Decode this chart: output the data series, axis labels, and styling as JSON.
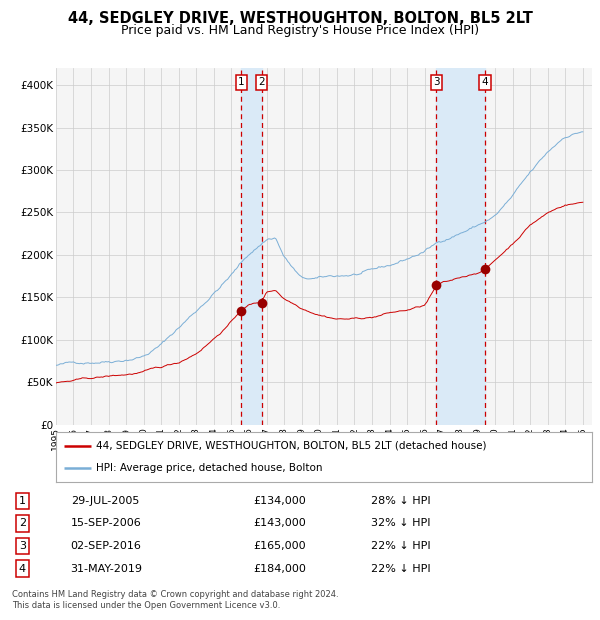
{
  "title": "44, SEDGLEY DRIVE, WESTHOUGHTON, BOLTON, BL5 2LT",
  "subtitle": "Price paid vs. HM Land Registry's House Price Index (HPI)",
  "ylim": [
    0,
    420000
  ],
  "yticks": [
    0,
    50000,
    100000,
    150000,
    200000,
    250000,
    300000,
    350000,
    400000
  ],
  "ytick_labels": [
    "£0",
    "£50K",
    "£100K",
    "£150K",
    "£200K",
    "£250K",
    "£300K",
    "£350K",
    "£400K"
  ],
  "xlim_start": 1995.0,
  "xlim_end": 2025.5,
  "transactions": [
    {
      "num": 1,
      "date_dec": 2005.57,
      "price": 134000,
      "label": "29-JUL-2005",
      "pct": "28%"
    },
    {
      "num": 2,
      "date_dec": 2006.71,
      "price": 143000,
      "label": "15-SEP-2006",
      "pct": "32%"
    },
    {
      "num": 3,
      "date_dec": 2016.67,
      "price": 165000,
      "label": "02-SEP-2016",
      "pct": "22%"
    },
    {
      "num": 4,
      "date_dec": 2019.42,
      "price": 184000,
      "label": "31-MAY-2019",
      "pct": "22%"
    }
  ],
  "red_line_color": "#cc0000",
  "blue_line_color": "#7aaed6",
  "marker_color": "#990000",
  "shaded_color": "#daeaf7",
  "vline_color": "#cc0000",
  "grid_color": "#cccccc",
  "bg_color": "#ffffff",
  "panel_bg": "#f5f5f5",
  "title_fontsize": 10.5,
  "subtitle_fontsize": 9,
  "tick_fontsize": 7.5,
  "legend_fontsize": 7.5,
  "table_fontsize": 8,
  "footer_fontsize": 6,
  "legend_label_red": "44, SEDGLEY DRIVE, WESTHOUGHTON, BOLTON, BL5 2LT (detached house)",
  "legend_label_blue": "HPI: Average price, detached house, Bolton",
  "footer_line1": "Contains HM Land Registry data © Crown copyright and database right 2024.",
  "footer_line2": "This data is licensed under the Open Government Licence v3.0.",
  "hpi_anchors_t": [
    1995,
    1996,
    1997,
    1998,
    1999,
    2000,
    2001,
    2002,
    2003,
    2004,
    2005,
    2006,
    2007,
    2007.5,
    2008,
    2009,
    2010,
    2011,
    2012,
    2013,
    2014,
    2015,
    2016,
    2017,
    2018,
    2019,
    2020,
    2021,
    2022,
    2023,
    2024,
    2025
  ],
  "hpi_anchors_v": [
    70000,
    72000,
    75000,
    78000,
    82000,
    87000,
    100000,
    120000,
    140000,
    162000,
    183000,
    207000,
    225000,
    228000,
    205000,
    178000,
    177000,
    179000,
    181000,
    183000,
    188000,
    196000,
    205000,
    218000,
    228000,
    237000,
    248000,
    270000,
    295000,
    318000,
    338000,
    345000
  ],
  "red_anchors_t": [
    1995,
    1996,
    1997,
    1998,
    1999,
    2000,
    2001,
    2002,
    2003,
    2004,
    2005,
    2005.57,
    2006,
    2006.71,
    2007,
    2007.5,
    2008,
    2009,
    2010,
    2011,
    2012,
    2013,
    2014,
    2015,
    2016,
    2016.67,
    2017,
    2017.5,
    2018,
    2018.5,
    2019,
    2019.42,
    2020,
    2021,
    2022,
    2023,
    2024,
    2025
  ],
  "red_anchors_v": [
    49000,
    51000,
    53000,
    55000,
    57000,
    60000,
    64000,
    70000,
    82000,
    100000,
    120000,
    134000,
    140000,
    143000,
    155000,
    158000,
    148000,
    138000,
    132000,
    128000,
    128000,
    130000,
    135000,
    138000,
    143000,
    165000,
    168000,
    170000,
    174000,
    177000,
    181000,
    184000,
    195000,
    215000,
    238000,
    252000,
    262000,
    265000
  ]
}
